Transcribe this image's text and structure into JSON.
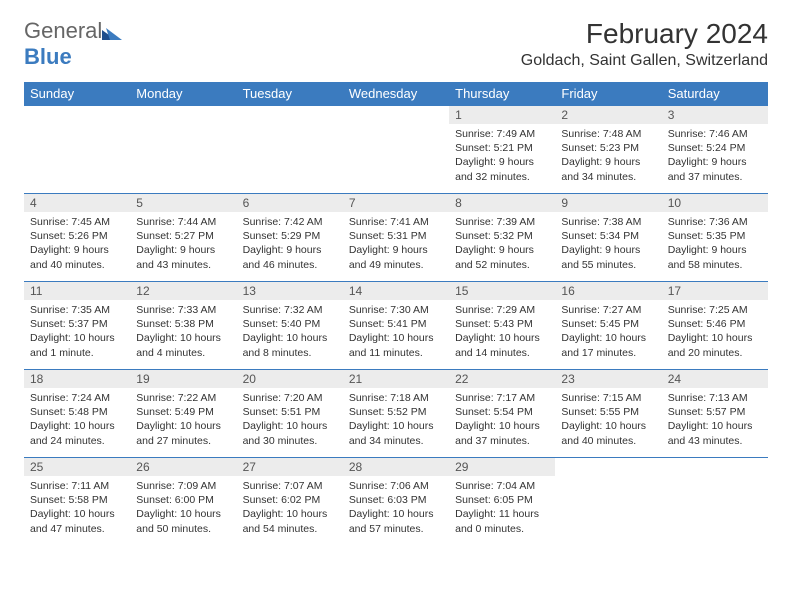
{
  "logo": {
    "text_gray": "General",
    "text_blue": "Blue"
  },
  "header": {
    "title": "February 2024",
    "location": "Goldach, Saint Gallen, Switzerland"
  },
  "colors": {
    "header_bar": "#3b7bbf",
    "day_num_bg": "#ececec",
    "text": "#333333"
  },
  "weekdays": [
    "Sunday",
    "Monday",
    "Tuesday",
    "Wednesday",
    "Thursday",
    "Friday",
    "Saturday"
  ],
  "weeks": [
    [
      {
        "empty": true
      },
      {
        "empty": true
      },
      {
        "empty": true
      },
      {
        "empty": true
      },
      {
        "num": "1",
        "sunrise": "Sunrise: 7:49 AM",
        "sunset": "Sunset: 5:21 PM",
        "daylight1": "Daylight: 9 hours",
        "daylight2": "and 32 minutes."
      },
      {
        "num": "2",
        "sunrise": "Sunrise: 7:48 AM",
        "sunset": "Sunset: 5:23 PM",
        "daylight1": "Daylight: 9 hours",
        "daylight2": "and 34 minutes."
      },
      {
        "num": "3",
        "sunrise": "Sunrise: 7:46 AM",
        "sunset": "Sunset: 5:24 PM",
        "daylight1": "Daylight: 9 hours",
        "daylight2": "and 37 minutes."
      }
    ],
    [
      {
        "num": "4",
        "sunrise": "Sunrise: 7:45 AM",
        "sunset": "Sunset: 5:26 PM",
        "daylight1": "Daylight: 9 hours",
        "daylight2": "and 40 minutes."
      },
      {
        "num": "5",
        "sunrise": "Sunrise: 7:44 AM",
        "sunset": "Sunset: 5:27 PM",
        "daylight1": "Daylight: 9 hours",
        "daylight2": "and 43 minutes."
      },
      {
        "num": "6",
        "sunrise": "Sunrise: 7:42 AM",
        "sunset": "Sunset: 5:29 PM",
        "daylight1": "Daylight: 9 hours",
        "daylight2": "and 46 minutes."
      },
      {
        "num": "7",
        "sunrise": "Sunrise: 7:41 AM",
        "sunset": "Sunset: 5:31 PM",
        "daylight1": "Daylight: 9 hours",
        "daylight2": "and 49 minutes."
      },
      {
        "num": "8",
        "sunrise": "Sunrise: 7:39 AM",
        "sunset": "Sunset: 5:32 PM",
        "daylight1": "Daylight: 9 hours",
        "daylight2": "and 52 minutes."
      },
      {
        "num": "9",
        "sunrise": "Sunrise: 7:38 AM",
        "sunset": "Sunset: 5:34 PM",
        "daylight1": "Daylight: 9 hours",
        "daylight2": "and 55 minutes."
      },
      {
        "num": "10",
        "sunrise": "Sunrise: 7:36 AM",
        "sunset": "Sunset: 5:35 PM",
        "daylight1": "Daylight: 9 hours",
        "daylight2": "and 58 minutes."
      }
    ],
    [
      {
        "num": "11",
        "sunrise": "Sunrise: 7:35 AM",
        "sunset": "Sunset: 5:37 PM",
        "daylight1": "Daylight: 10 hours",
        "daylight2": "and 1 minute."
      },
      {
        "num": "12",
        "sunrise": "Sunrise: 7:33 AM",
        "sunset": "Sunset: 5:38 PM",
        "daylight1": "Daylight: 10 hours",
        "daylight2": "and 4 minutes."
      },
      {
        "num": "13",
        "sunrise": "Sunrise: 7:32 AM",
        "sunset": "Sunset: 5:40 PM",
        "daylight1": "Daylight: 10 hours",
        "daylight2": "and 8 minutes."
      },
      {
        "num": "14",
        "sunrise": "Sunrise: 7:30 AM",
        "sunset": "Sunset: 5:41 PM",
        "daylight1": "Daylight: 10 hours",
        "daylight2": "and 11 minutes."
      },
      {
        "num": "15",
        "sunrise": "Sunrise: 7:29 AM",
        "sunset": "Sunset: 5:43 PM",
        "daylight1": "Daylight: 10 hours",
        "daylight2": "and 14 minutes."
      },
      {
        "num": "16",
        "sunrise": "Sunrise: 7:27 AM",
        "sunset": "Sunset: 5:45 PM",
        "daylight1": "Daylight: 10 hours",
        "daylight2": "and 17 minutes."
      },
      {
        "num": "17",
        "sunrise": "Sunrise: 7:25 AM",
        "sunset": "Sunset: 5:46 PM",
        "daylight1": "Daylight: 10 hours",
        "daylight2": "and 20 minutes."
      }
    ],
    [
      {
        "num": "18",
        "sunrise": "Sunrise: 7:24 AM",
        "sunset": "Sunset: 5:48 PM",
        "daylight1": "Daylight: 10 hours",
        "daylight2": "and 24 minutes."
      },
      {
        "num": "19",
        "sunrise": "Sunrise: 7:22 AM",
        "sunset": "Sunset: 5:49 PM",
        "daylight1": "Daylight: 10 hours",
        "daylight2": "and 27 minutes."
      },
      {
        "num": "20",
        "sunrise": "Sunrise: 7:20 AM",
        "sunset": "Sunset: 5:51 PM",
        "daylight1": "Daylight: 10 hours",
        "daylight2": "and 30 minutes."
      },
      {
        "num": "21",
        "sunrise": "Sunrise: 7:18 AM",
        "sunset": "Sunset: 5:52 PM",
        "daylight1": "Daylight: 10 hours",
        "daylight2": "and 34 minutes."
      },
      {
        "num": "22",
        "sunrise": "Sunrise: 7:17 AM",
        "sunset": "Sunset: 5:54 PM",
        "daylight1": "Daylight: 10 hours",
        "daylight2": "and 37 minutes."
      },
      {
        "num": "23",
        "sunrise": "Sunrise: 7:15 AM",
        "sunset": "Sunset: 5:55 PM",
        "daylight1": "Daylight: 10 hours",
        "daylight2": "and 40 minutes."
      },
      {
        "num": "24",
        "sunrise": "Sunrise: 7:13 AM",
        "sunset": "Sunset: 5:57 PM",
        "daylight1": "Daylight: 10 hours",
        "daylight2": "and 43 minutes."
      }
    ],
    [
      {
        "num": "25",
        "sunrise": "Sunrise: 7:11 AM",
        "sunset": "Sunset: 5:58 PM",
        "daylight1": "Daylight: 10 hours",
        "daylight2": "and 47 minutes."
      },
      {
        "num": "26",
        "sunrise": "Sunrise: 7:09 AM",
        "sunset": "Sunset: 6:00 PM",
        "daylight1": "Daylight: 10 hours",
        "daylight2": "and 50 minutes."
      },
      {
        "num": "27",
        "sunrise": "Sunrise: 7:07 AM",
        "sunset": "Sunset: 6:02 PM",
        "daylight1": "Daylight: 10 hours",
        "daylight2": "and 54 minutes."
      },
      {
        "num": "28",
        "sunrise": "Sunrise: 7:06 AM",
        "sunset": "Sunset: 6:03 PM",
        "daylight1": "Daylight: 10 hours",
        "daylight2": "and 57 minutes."
      },
      {
        "num": "29",
        "sunrise": "Sunrise: 7:04 AM",
        "sunset": "Sunset: 6:05 PM",
        "daylight1": "Daylight: 11 hours",
        "daylight2": "and 0 minutes."
      },
      {
        "empty": true
      },
      {
        "empty": true
      }
    ]
  ]
}
